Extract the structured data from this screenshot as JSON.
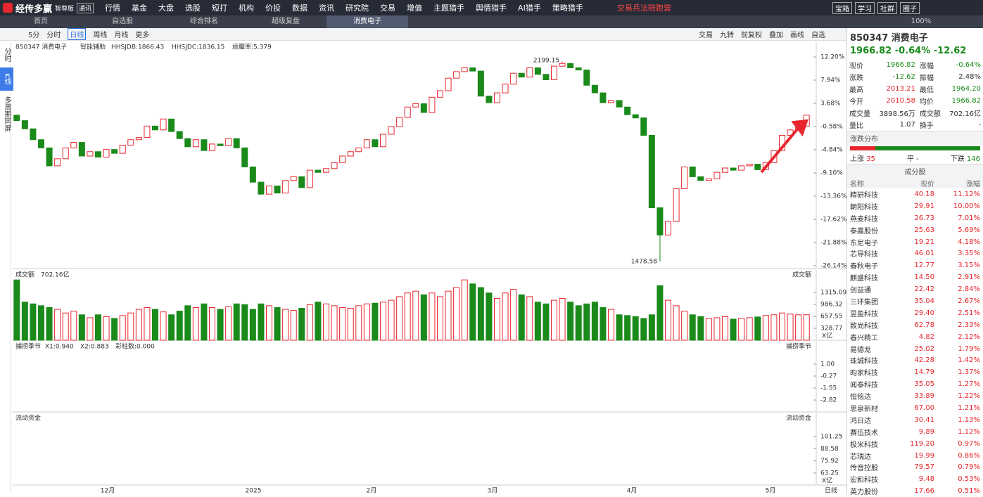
{
  "app": {
    "name": "经传多赢",
    "edition": "智尊版",
    "badge": "通讯",
    "menu": [
      "行情",
      "基金",
      "大盘",
      "选股",
      "短打",
      "机构",
      "价投",
      "数据",
      "资讯",
      "研究院",
      "交易",
      "增值",
      "主题猎手",
      "舆情猎手",
      "AI猎手",
      "策略猎手"
    ],
    "promo": "交易兵法陪跑营",
    "buttons": [
      "宝箱",
      "学习",
      "社群",
      "圈子"
    ]
  },
  "tabs": [
    "首页",
    "自选股",
    "综合排名",
    "超级复盘",
    "消费电子"
  ],
  "zoom": "100%",
  "toolbar": {
    "periods": [
      "5分",
      "分时",
      "日线",
      "周线",
      "月线",
      "更多"
    ],
    "tools": [
      "交易",
      "九转",
      "前复权",
      "叠加",
      "画线",
      "自选"
    ]
  },
  "side_tabs": [
    "分时",
    "K线",
    "多周期同屏"
  ],
  "chart_data": {
    "type": "candlestick",
    "title": "850347 消费电子",
    "assist": "智能辅助",
    "indicators": [
      "HHSJDB:1866.43",
      "HHSJDC:1836.15",
      "顽魔率:5.379"
    ],
    "up_color": "#e8262d",
    "down_color": "#1a8a1a",
    "ylim": [
      -26.66,
      13.1
    ],
    "yticks": [
      {
        "value": 12.2,
        "label": "12.20%"
      },
      {
        "value": 7.94,
        "label": "7.94%"
      },
      {
        "value": 3.68,
        "label": "3.68%"
      },
      {
        "value": -0.58,
        "label": "-0.58%"
      },
      {
        "value": -4.84,
        "label": "-4.84%"
      },
      {
        "value": -9.1,
        "label": "-9.10%"
      },
      {
        "value": -13.36,
        "label": "-13.36%"
      },
      {
        "value": -17.62,
        "label": "-17.62%"
      },
      {
        "value": -21.88,
        "label": "-21.88%"
      },
      {
        "value": -26.14,
        "label": "-26.14%"
      }
    ],
    "open": [
      1.5,
      0.5,
      -1.0,
      -3.0,
      -4.5,
      -7.8,
      -6.5,
      -4.5,
      -3.5,
      -6.0,
      -5.2,
      -6.2,
      -4.8,
      -5.5,
      -4.0,
      -3.0,
      -2.6,
      -0.5,
      -1.2,
      0.8,
      -1.5,
      -2.8,
      -4.3,
      -3.0,
      -5.0,
      -3.8,
      -4.1,
      -2.8,
      -4.5,
      -8.0,
      -10.8,
      -13.0,
      -11.5,
      -12.8,
      -10.5,
      -9.8,
      -11.8,
      -8.6,
      -9.0,
      -8.3,
      -7.2,
      -6.0,
      -5.2,
      -4.5,
      -3.0,
      -4.3,
      -2.0,
      -0.6,
      1.1,
      3.0,
      3.6,
      2.0,
      4.8,
      6.0,
      8.3,
      9.5,
      10.2,
      9.6,
      5.0,
      3.8,
      5.6,
      7.2,
      9.2,
      8.5,
      10.2,
      9.0,
      8.0,
      10.5,
      11.0,
      10.2,
      9.8,
      7.0,
      5.6,
      3.8,
      4.2,
      3.0,
      1.6,
      1.0,
      -2.2,
      -15.5,
      -20.5,
      -18.0,
      -12.0,
      -8.0,
      -9.8,
      -10.5,
      -10.2,
      -9.0,
      -8.2,
      -8.6,
      -7.8,
      -7.5,
      -8.5,
      -7.2,
      -5.0,
      -2.2,
      -1.2,
      -0.5
    ],
    "close": [
      0.5,
      -1.0,
      -3.0,
      -4.5,
      -7.8,
      -6.5,
      -4.5,
      -3.5,
      -6.0,
      -5.2,
      -6.2,
      -4.8,
      -5.5,
      -4.0,
      -3.0,
      -2.6,
      -0.5,
      -1.2,
      0.8,
      -1.5,
      -2.8,
      -4.3,
      -3.0,
      -5.0,
      -3.8,
      -4.1,
      -2.8,
      -4.5,
      -8.0,
      -10.8,
      -13.0,
      -11.5,
      -12.8,
      -10.5,
      -9.8,
      -11.8,
      -8.6,
      -9.0,
      -8.3,
      -7.2,
      -6.0,
      -5.2,
      -4.5,
      -3.0,
      -4.3,
      -2.0,
      -0.6,
      1.1,
      3.0,
      3.6,
      2.0,
      4.8,
      6.0,
      8.3,
      9.5,
      10.2,
      9.6,
      5.0,
      3.8,
      5.6,
      7.2,
      9.2,
      8.5,
      10.2,
      9.0,
      8.0,
      10.5,
      11.0,
      10.2,
      9.8,
      7.0,
      5.6,
      3.8,
      4.2,
      3.0,
      1.6,
      1.0,
      -2.2,
      -15.5,
      -20.5,
      -18.0,
      -12.0,
      -8.0,
      -9.8,
      -10.5,
      -10.2,
      -9.0,
      -8.2,
      -8.6,
      -7.8,
      -7.5,
      -8.5,
      -7.2,
      -5.0,
      -2.2,
      -1.2,
      -0.5,
      1.5
    ],
    "high_mark": {
      "value": 11.3,
      "label": "2199.15"
    },
    "low_mark": {
      "value": -25.4,
      "label": "1478.58"
    },
    "x_labels": [
      "12月",
      "2025",
      "2月",
      "3月",
      "4月",
      "5月"
    ],
    "period": "日线"
  },
  "volume": {
    "title": "成交额",
    "total": "702.16亿",
    "right_title": "成交额",
    "unit": "X亿",
    "ylim": [
      0,
      1663
    ],
    "yticks": [
      1315.09,
      986.32,
      657.55,
      328.77
    ],
    "values": [
      1660,
      1050,
      1000,
      950,
      900,
      850,
      750,
      800,
      700,
      620,
      700,
      650,
      600,
      680,
      750,
      850,
      900,
      850,
      780,
      700,
      800,
      950,
      900,
      1000,
      900,
      850,
      920,
      1000,
      980,
      850,
      1000,
      950,
      900,
      850,
      820,
      880,
      980,
      1050,
      1000,
      950,
      900,
      880,
      950,
      1000,
      1020,
      1050,
      1100,
      1200,
      1300,
      1350,
      1250,
      1300,
      1200,
      1350,
      1450,
      1660,
      1550,
      1450,
      1300,
      1150,
      1300,
      1400,
      1250,
      1200,
      1050,
      1000,
      1100,
      1150,
      1050,
      950,
      1000,
      1050,
      900,
      850,
      700,
      680,
      650,
      600,
      700,
      1500,
      1100,
      950,
      800,
      700,
      650,
      600,
      620,
      650,
      580,
      600,
      620,
      640,
      680,
      700,
      750,
      720,
      700,
      702.16
    ]
  },
  "indicator": {
    "title": "捕捞季节",
    "params": [
      "X1:0.940",
      "X2:0.883",
      "彩柱数:0.000"
    ],
    "right_title": "捕捞季节",
    "ylim": [
      -3.79,
      2.12
    ],
    "yticks": [
      {
        "value": 1,
        "label": "1.00"
      },
      -0.27,
      -1.55,
      -2.82
    ]
  },
  "fund": {
    "title": "流动资金",
    "right_title": "流动资金",
    "unit": "X亿",
    "ylim": [
      50.8,
      116.6
    ],
    "yticks": [
      101.25,
      88.58,
      75.92,
      63.25
    ]
  },
  "quote": {
    "title": "850347 消费电子",
    "price": "1966.82",
    "change_pct": "-0.64%",
    "change": "-12.62",
    "rows": [
      [
        "现价",
        "1966.82",
        "涨幅",
        "-0.64%"
      ],
      [
        "涨跌",
        "-12.62",
        "振幅",
        "2.48%"
      ],
      [
        "最高",
        "2013.21",
        "最低",
        "1964.20"
      ],
      [
        "今开",
        "2010.58",
        "均价",
        "1966.82"
      ],
      [
        "成交量",
        "3898.56万",
        "成交额",
        "702.16亿"
      ],
      [
        "量比",
        "1.07",
        "换手",
        "-"
      ]
    ],
    "row_colors": [
      [
        "#333",
        "#1a8a1a",
        "#333",
        "#1a8a1a"
      ],
      [
        "#333",
        "#1a8a1a",
        "#333",
        "#333"
      ],
      [
        "#333",
        "#e8262d",
        "#333",
        "#1a8a1a"
      ],
      [
        "#333",
        "#e8262d",
        "#333",
        "#1a8a1a"
      ],
      [
        "#333",
        "#333",
        "#333",
        "#333"
      ],
      [
        "#333",
        "#333",
        "#333",
        "#333"
      ]
    ]
  },
  "distribution": {
    "title": "涨跌分布",
    "up_label": "上涨",
    "up": 35,
    "flat_label": "平",
    "flat": "-",
    "down_label": "下跌",
    "down": 146
  },
  "constituents": {
    "title": "成分股",
    "headers": [
      "名称",
      "现价",
      "涨幅"
    ],
    "rows": [
      [
        "精研科技",
        "40.18",
        "11.12%"
      ],
      [
        "朝阳科技",
        "29.91",
        "10.00%"
      ],
      [
        "燕麦科技",
        "26.73",
        "7.01%"
      ],
      [
        "泰嘉股份",
        "25.63",
        "5.69%"
      ],
      [
        "东尼电子",
        "19.21",
        "4.18%"
      ],
      [
        "芯导科技",
        "46.01",
        "3.35%"
      ],
      [
        "春秋电子",
        "12.77",
        "3.15%"
      ],
      [
        "麒盛科技",
        "14.50",
        "2.91%"
      ],
      [
        "创益通",
        "22.42",
        "2.84%"
      ],
      [
        "三环集团",
        "35.04",
        "2.67%"
      ],
      [
        "昱盈科技",
        "29.40",
        "2.51%"
      ],
      [
        "致尚科技",
        "62.78",
        "2.33%"
      ],
      [
        "春兴精工",
        "4.82",
        "2.12%"
      ],
      [
        "易德龙",
        "25.02",
        "1.79%"
      ],
      [
        "珠城科技",
        "42.28",
        "1.42%"
      ],
      [
        "昀家科技",
        "14.79",
        "1.37%"
      ],
      [
        "闻泰科技",
        "35.05",
        "1.27%"
      ],
      [
        "恒铭达",
        "33.89",
        "1.22%"
      ],
      [
        "思泉新材",
        "67.00",
        "1.21%"
      ],
      [
        "鸿日达",
        "30.41",
        "1.13%"
      ],
      [
        "赛伍技术",
        "9.89",
        "1.12%"
      ],
      [
        "极米科技",
        "119.20",
        "0.97%"
      ],
      [
        "芯瑞达",
        "19.99",
        "0.86%"
      ],
      [
        "传音控股",
        "79.57",
        "0.79%"
      ],
      [
        "宏和科技",
        "9.48",
        "0.53%"
      ],
      [
        "英力股份",
        "17.66",
        "0.51%"
      ]
    ]
  }
}
